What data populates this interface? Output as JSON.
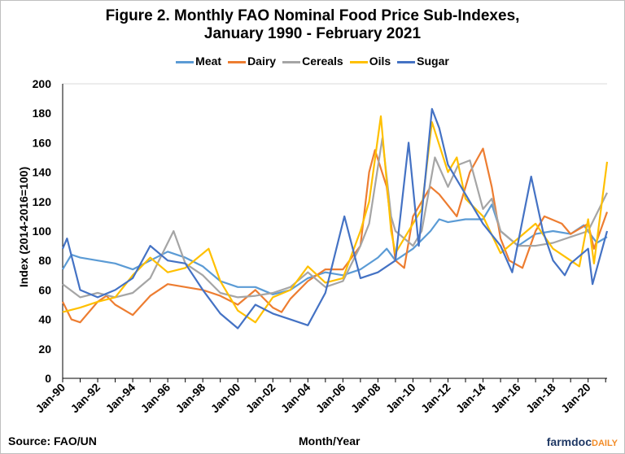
{
  "chart_data": {
    "type": "line",
    "title": "Figure 2. Monthly FAO Nominal Food Price Sub-Indexes,",
    "subtitle": "January 1990 - February 2021",
    "xlabel": "Month/Year",
    "ylabel": "Index (2014-2016=100)",
    "source": "Source: FAO/UN",
    "ylim": [
      0,
      200
    ],
    "yticks": [
      "0",
      "20",
      "40",
      "60",
      "80",
      "100",
      "120",
      "140",
      "160",
      "180",
      "200"
    ],
    "xlim": [
      "1990-01",
      "2021-02"
    ],
    "xticks": [
      "Jan-90",
      "Jan-92",
      "Jan-94",
      "Jan-96",
      "Jan-98",
      "Jan-00",
      "Jan-02",
      "Jan-04",
      "Jan-06",
      "Jan-08",
      "Jan-10",
      "Jan-12",
      "Jan-14",
      "Jan-16",
      "Jan-18",
      "Jan-20"
    ],
    "legend_position": "top",
    "grid": false,
    "series": [
      {
        "name": "Meat",
        "color": "#5B9BD5",
        "points": [
          [
            "1990-01",
            74
          ],
          [
            "1990-07",
            84
          ],
          [
            "1991-01",
            82
          ],
          [
            "1992-01",
            80
          ],
          [
            "1993-01",
            78
          ],
          [
            "1994-01",
            74
          ],
          [
            "1995-01",
            80
          ],
          [
            "1996-01",
            86
          ],
          [
            "1997-01",
            82
          ],
          [
            "1998-01",
            76
          ],
          [
            "1999-01",
            66
          ],
          [
            "2000-01",
            62
          ],
          [
            "2001-01",
            62
          ],
          [
            "2002-01",
            57
          ],
          [
            "2003-01",
            60
          ],
          [
            "2004-01",
            68
          ],
          [
            "2005-01",
            72
          ],
          [
            "2006-01",
            70
          ],
          [
            "2007-01",
            74
          ],
          [
            "2008-01",
            82
          ],
          [
            "2008-07",
            88
          ],
          [
            "2009-01",
            80
          ],
          [
            "2010-01",
            88
          ],
          [
            "2011-01",
            100
          ],
          [
            "2011-07",
            108
          ],
          [
            "2012-01",
            106
          ],
          [
            "2013-01",
            108
          ],
          [
            "2014-01",
            108
          ],
          [
            "2014-07",
            118
          ],
          [
            "2015-01",
            100
          ],
          [
            "2016-01",
            90
          ],
          [
            "2017-01",
            98
          ],
          [
            "2018-01",
            100
          ],
          [
            "2019-01",
            98
          ],
          [
            "2019-10",
            104
          ],
          [
            "2020-07",
            92
          ],
          [
            "2021-02",
            96
          ]
        ]
      },
      {
        "name": "Dairy",
        "color": "#ED7D31",
        "points": [
          [
            "1990-01",
            52
          ],
          [
            "1990-07",
            40
          ],
          [
            "1991-01",
            38
          ],
          [
            "1992-01",
            52
          ],
          [
            "1992-07",
            56
          ],
          [
            "1993-01",
            50
          ],
          [
            "1994-01",
            43
          ],
          [
            "1995-01",
            56
          ],
          [
            "1996-01",
            64
          ],
          [
            "1997-01",
            62
          ],
          [
            "1998-01",
            60
          ],
          [
            "1999-01",
            56
          ],
          [
            "2000-01",
            50
          ],
          [
            "2001-01",
            60
          ],
          [
            "2002-01",
            48
          ],
          [
            "2002-07",
            45
          ],
          [
            "2003-01",
            54
          ],
          [
            "2004-01",
            66
          ],
          [
            "2005-01",
            74
          ],
          [
            "2006-01",
            74
          ],
          [
            "2007-01",
            90
          ],
          [
            "2007-07",
            140
          ],
          [
            "2007-11",
            155
          ],
          [
            "2008-07",
            130
          ],
          [
            "2009-01",
            80
          ],
          [
            "2009-07",
            75
          ],
          [
            "2010-01",
            110
          ],
          [
            "2011-01",
            130
          ],
          [
            "2011-07",
            125
          ],
          [
            "2012-07",
            110
          ],
          [
            "2013-04",
            140
          ],
          [
            "2014-01",
            156
          ],
          [
            "2014-07",
            130
          ],
          [
            "2015-01",
            95
          ],
          [
            "2015-07",
            80
          ],
          [
            "2016-04",
            75
          ],
          [
            "2017-01",
            100
          ],
          [
            "2017-07",
            110
          ],
          [
            "2018-07",
            105
          ],
          [
            "2019-01",
            98
          ],
          [
            "2020-01",
            105
          ],
          [
            "2020-05",
            88
          ],
          [
            "2021-02",
            113
          ]
        ]
      },
      {
        "name": "Cereals",
        "color": "#A5A5A5",
        "points": [
          [
            "1990-01",
            64
          ],
          [
            "1991-01",
            55
          ],
          [
            "1992-01",
            58
          ],
          [
            "1993-01",
            55
          ],
          [
            "1994-01",
            58
          ],
          [
            "1995-01",
            68
          ],
          [
            "1996-05",
            100
          ],
          [
            "1997-01",
            78
          ],
          [
            "1998-01",
            70
          ],
          [
            "1999-01",
            58
          ],
          [
            "2000-01",
            55
          ],
          [
            "2001-01",
            56
          ],
          [
            "2002-01",
            58
          ],
          [
            "2003-01",
            62
          ],
          [
            "2004-01",
            72
          ],
          [
            "2005-01",
            62
          ],
          [
            "2006-01",
            66
          ],
          [
            "2007-01",
            90
          ],
          [
            "2007-07",
            105
          ],
          [
            "2008-04",
            163
          ],
          [
            "2008-10",
            110
          ],
          [
            "2009-01",
            100
          ],
          [
            "2010-01",
            90
          ],
          [
            "2010-07",
            100
          ],
          [
            "2011-04",
            150
          ],
          [
            "2012-01",
            130
          ],
          [
            "2012-08",
            145
          ],
          [
            "2013-04",
            148
          ],
          [
            "2014-01",
            115
          ],
          [
            "2014-07",
            122
          ],
          [
            "2015-01",
            100
          ],
          [
            "2016-01",
            90
          ],
          [
            "2017-01",
            90
          ],
          [
            "2018-01",
            92
          ],
          [
            "2019-01",
            96
          ],
          [
            "2020-01",
            100
          ],
          [
            "2021-02",
            126
          ]
        ]
      },
      {
        "name": "Oils",
        "color": "#FFC000",
        "points": [
          [
            "1990-01",
            45
          ],
          [
            "1991-01",
            48
          ],
          [
            "1992-01",
            52
          ],
          [
            "1993-01",
            55
          ],
          [
            "1994-01",
            70
          ],
          [
            "1995-01",
            82
          ],
          [
            "1996-01",
            72
          ],
          [
            "1997-01",
            75
          ],
          [
            "1998-05",
            88
          ],
          [
            "1999-01",
            66
          ],
          [
            "2000-01",
            46
          ],
          [
            "2001-01",
            38
          ],
          [
            "2002-01",
            55
          ],
          [
            "2003-01",
            60
          ],
          [
            "2004-01",
            76
          ],
          [
            "2005-01",
            65
          ],
          [
            "2006-01",
            68
          ],
          [
            "2007-01",
            100
          ],
          [
            "2007-07",
            120
          ],
          [
            "2008-03",
            178
          ],
          [
            "2008-10",
            100
          ],
          [
            "2009-01",
            85
          ],
          [
            "2010-01",
            105
          ],
          [
            "2010-07",
            115
          ],
          [
            "2011-02",
            174
          ],
          [
            "2012-01",
            140
          ],
          [
            "2012-07",
            150
          ],
          [
            "2013-01",
            122
          ],
          [
            "2014-01",
            110
          ],
          [
            "2015-01",
            85
          ],
          [
            "2016-01",
            95
          ],
          [
            "2017-01",
            105
          ],
          [
            "2018-01",
            88
          ],
          [
            "2019-01",
            80
          ],
          [
            "2019-07",
            76
          ],
          [
            "2020-01",
            108
          ],
          [
            "2020-05",
            78
          ],
          [
            "2021-02",
            147
          ]
        ]
      },
      {
        "name": "Sugar",
        "color": "#4472C4",
        "points": [
          [
            "1990-01",
            88
          ],
          [
            "1990-04",
            95
          ],
          [
            "1991-01",
            60
          ],
          [
            "1992-01",
            55
          ],
          [
            "1993-01",
            60
          ],
          [
            "1994-01",
            68
          ],
          [
            "1995-01",
            90
          ],
          [
            "1996-01",
            80
          ],
          [
            "1997-01",
            78
          ],
          [
            "1998-01",
            60
          ],
          [
            "1999-01",
            44
          ],
          [
            "2000-01",
            34
          ],
          [
            "2001-01",
            50
          ],
          [
            "2002-01",
            44
          ],
          [
            "2003-01",
            40
          ],
          [
            "2004-01",
            36
          ],
          [
            "2005-01",
            58
          ],
          [
            "2006-02",
            110
          ],
          [
            "2007-01",
            68
          ],
          [
            "2008-01",
            72
          ],
          [
            "2009-01",
            80
          ],
          [
            "2009-10",
            160
          ],
          [
            "2010-05",
            90
          ],
          [
            "2011-02",
            183
          ],
          [
            "2011-07",
            170
          ],
          [
            "2012-01",
            145
          ],
          [
            "2013-01",
            125
          ],
          [
            "2014-01",
            105
          ],
          [
            "2015-01",
            90
          ],
          [
            "2015-09",
            72
          ],
          [
            "2016-10",
            137
          ],
          [
            "2017-06",
            100
          ],
          [
            "2018-01",
            80
          ],
          [
            "2018-09",
            70
          ],
          [
            "2019-01",
            78
          ],
          [
            "2020-01",
            88
          ],
          [
            "2020-04",
            64
          ],
          [
            "2021-02",
            100
          ]
        ]
      }
    ]
  },
  "branding": {
    "logo_main": "farmdoc",
    "logo_accent": "DAILY"
  }
}
